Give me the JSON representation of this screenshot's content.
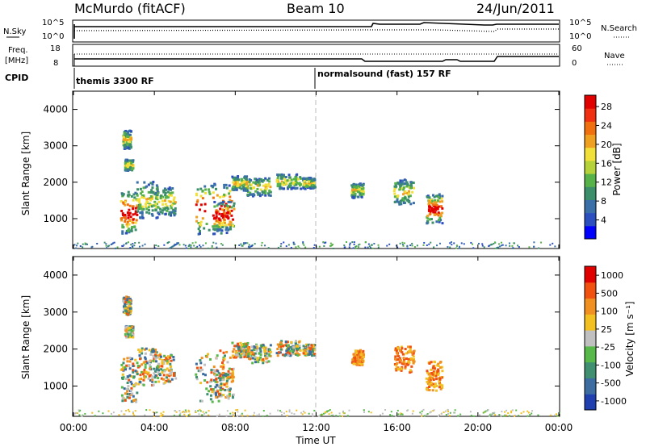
{
  "header": {
    "station": "McMurdo (fitACF)",
    "beam": "Beam 10",
    "date": "24/Jun/2011"
  },
  "status_panels": {
    "nsky_label": "N.Sky",
    "nsky_ticks": [
      "10^5",
      "10^0"
    ],
    "nsearch_label": "N.Search",
    "nsearch_ticks": [
      "10^5",
      "10^0"
    ],
    "freq_label_1": "Freq.",
    "freq_label_2": "[MHz]",
    "freq_ticks": [
      "18",
      "8"
    ],
    "nave_label": "Nave",
    "nave_ticks": [
      "60",
      "0"
    ],
    "cpid_label": "CPID",
    "cpid_programs": [
      "themis 3300 RF",
      "normalsound (fast) 157 RF"
    ]
  },
  "chart_data": [
    {
      "type": "heatmap",
      "panel": "power",
      "ylabel": "Slant Range [km]",
      "yticks": [
        "1000",
        "2000",
        "3000",
        "4000"
      ],
      "ylim": [
        180,
        4500
      ],
      "colorbar_label": "Power [dB]",
      "colorbar_ticks": [
        "4",
        "8",
        "12",
        "16",
        "20",
        "24",
        "28"
      ],
      "colorbar_colors": [
        "#0000ff",
        "#2b4fbf",
        "#3a6fa8",
        "#3c8f6a",
        "#58b24a",
        "#b6d23a",
        "#f2e03a",
        "#f0a020",
        "#f07010",
        "#f03010",
        "#e00000"
      ]
    },
    {
      "type": "heatmap",
      "panel": "velocity",
      "ylabel": "Slant Range [km]",
      "yticks": [
        "1000",
        "2000",
        "3000",
        "4000"
      ],
      "ylim": [
        180,
        4500
      ],
      "colorbar_label": "Velocity [m s⁻¹]",
      "colorbar_ticks": [
        "1000",
        "500",
        "100",
        "25",
        "-25",
        "-100",
        "-500",
        "-1000"
      ],
      "colorbar_colors": [
        "#2040b0",
        "#3c6ca0",
        "#3f8f70",
        "#58b84a",
        "#c0c0c0",
        "#f2c020",
        "#f09020",
        "#f05010",
        "#e00000"
      ]
    }
  ],
  "time_axis": {
    "label": "Time UT",
    "ticks": [
      "00:00",
      "04:00",
      "08:00",
      "12:00",
      "16:00",
      "20:00",
      "00:00"
    ]
  }
}
